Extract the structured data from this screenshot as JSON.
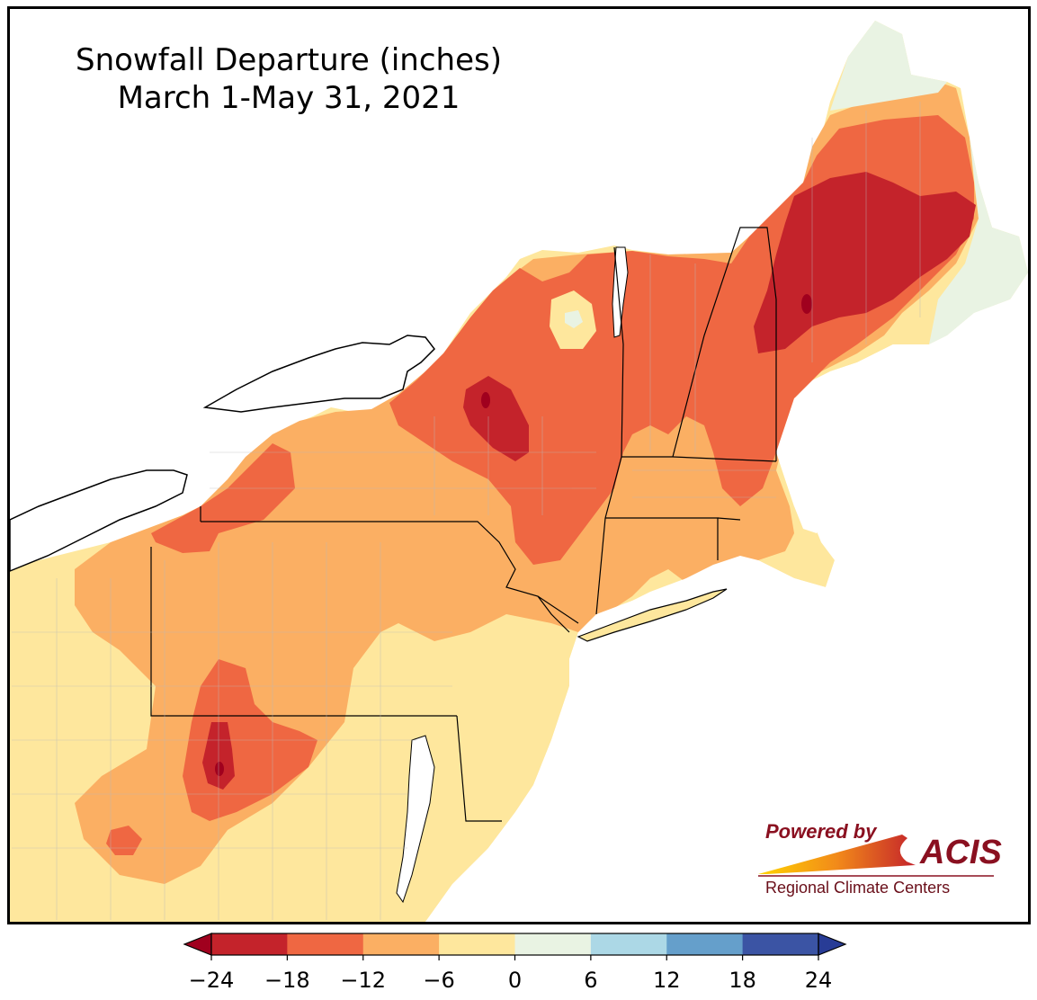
{
  "title": {
    "line1": "Snowfall Departure (inches)",
    "line2": "March 1-May 31, 2021"
  },
  "logo": {
    "powered_by": "Powered by",
    "name": "ACIS",
    "subtitle": "Regional Climate Centers"
  },
  "legend": {
    "bins": [
      {
        "range": [
          -24,
          -18
        ],
        "color": "#c4232b"
      },
      {
        "range": [
          -18,
          -12
        ],
        "color": "#ef6742"
      },
      {
        "range": [
          -12,
          -6
        ],
        "color": "#fbaf63"
      },
      {
        "range": [
          -6,
          0
        ],
        "color": "#fee79d"
      },
      {
        "range": [
          0,
          6
        ],
        "color": "#e9f3e3"
      },
      {
        "range": [
          6,
          12
        ],
        "color": "#acd8e6"
      },
      {
        "range": [
          12,
          18
        ],
        "color": "#659fcb"
      },
      {
        "range": [
          18,
          24
        ],
        "color": "#3b54a4"
      }
    ],
    "under_color": "#a0001e",
    "over_color": "#283c96",
    "ticks": [
      "−24",
      "−18",
      "−12",
      "−6",
      "0",
      "6",
      "12",
      "18",
      "24"
    ]
  },
  "colors": {
    "water": "#ffffff",
    "state_border": "#000000",
    "county_border": "#b9b9b9"
  }
}
